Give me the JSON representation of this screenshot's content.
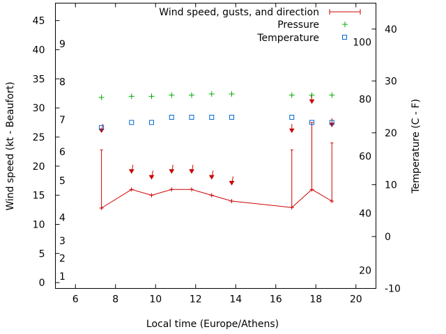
{
  "chart_data": {
    "type": "line",
    "title": "",
    "xlabel": "Local time (Europe/Athens)",
    "ylabel": "Wind speed (kt - Beaufort)",
    "y2label": "Temperature (C - F)",
    "xlim": [
      5,
      21
    ],
    "ylim": [
      -1,
      48
    ],
    "y2lim": [
      -10,
      45
    ],
    "x_ticks": [
      6,
      8,
      10,
      12,
      14,
      16,
      18,
      20
    ],
    "y_ticks": [
      0,
      5,
      10,
      15,
      20,
      25,
      30,
      35,
      40,
      45
    ],
    "y2_ticks": [
      -10,
      0,
      10,
      20,
      30,
      40
    ],
    "beaufort_labels": [
      {
        "label": "1",
        "y": 1.1
      },
      {
        "label": "2",
        "y": 4.2
      },
      {
        "label": "3",
        "y": 7.2
      },
      {
        "label": "4",
        "y": 11.2
      },
      {
        "label": "5",
        "y": 17.5
      },
      {
        "label": "6",
        "y": 22.5
      },
      {
        "label": "7",
        "y": 28.0
      },
      {
        "label": "8",
        "y": 34.5
      },
      {
        "label": "9",
        "y": 41.0
      }
    ],
    "fahrenheit_labels": [
      {
        "label": "20",
        "c": -6.5
      },
      {
        "label": "40",
        "c": 4.5
      },
      {
        "label": "60",
        "c": 15.5
      },
      {
        "label": "80",
        "c": 26.5
      },
      {
        "label": "100",
        "c": 37.5
      }
    ],
    "legend": {
      "placement": "top-right",
      "entries": [
        "Wind speed, gusts, and direction",
        "Pressure",
        "Temperature"
      ]
    },
    "series": [
      {
        "name": "Wind speed, gusts, and direction",
        "color": "#cc0000",
        "x": [
          7.3,
          8.8,
          9.8,
          10.8,
          11.8,
          12.8,
          13.8,
          16.8,
          17.8,
          18.8
        ],
        "values": [
          12.8,
          16.0,
          15.0,
          16.0,
          16.0,
          15.0,
          14.0,
          12.9,
          16.0,
          14.0
        ],
        "gusts": [
          22.8,
          null,
          null,
          null,
          null,
          null,
          null,
          22.8,
          27.5,
          24.0
        ],
        "arrow_y": [
          27.0,
          20.0,
          19.0,
          20.0,
          20.0,
          19.0,
          18.0,
          27.0,
          32.0,
          28.0
        ],
        "arrow_dx": [
          0.08,
          0.08,
          0.08,
          0.08,
          0.08,
          0.08,
          0.08,
          0.0,
          -0.03,
          0.0
        ]
      },
      {
        "name": "Pressure",
        "color": "#00aa00",
        "x": [
          7.3,
          8.8,
          9.8,
          10.8,
          11.8,
          12.8,
          13.8,
          16.8,
          17.8,
          18.8
        ],
        "values": [
          31.8,
          32.0,
          32.0,
          32.2,
          32.2,
          32.4,
          32.4,
          32.2,
          32.2,
          32.2
        ]
      },
      {
        "name": "Temperature",
        "color": "#0066cc",
        "x": [
          7.3,
          8.8,
          9.8,
          10.8,
          11.8,
          12.8,
          13.8,
          16.8,
          17.8,
          18.8
        ],
        "values": [
          21.0,
          22.0,
          22.0,
          23.0,
          23.0,
          23.0,
          23.0,
          23.0,
          22.0,
          22.0
        ]
      }
    ]
  }
}
